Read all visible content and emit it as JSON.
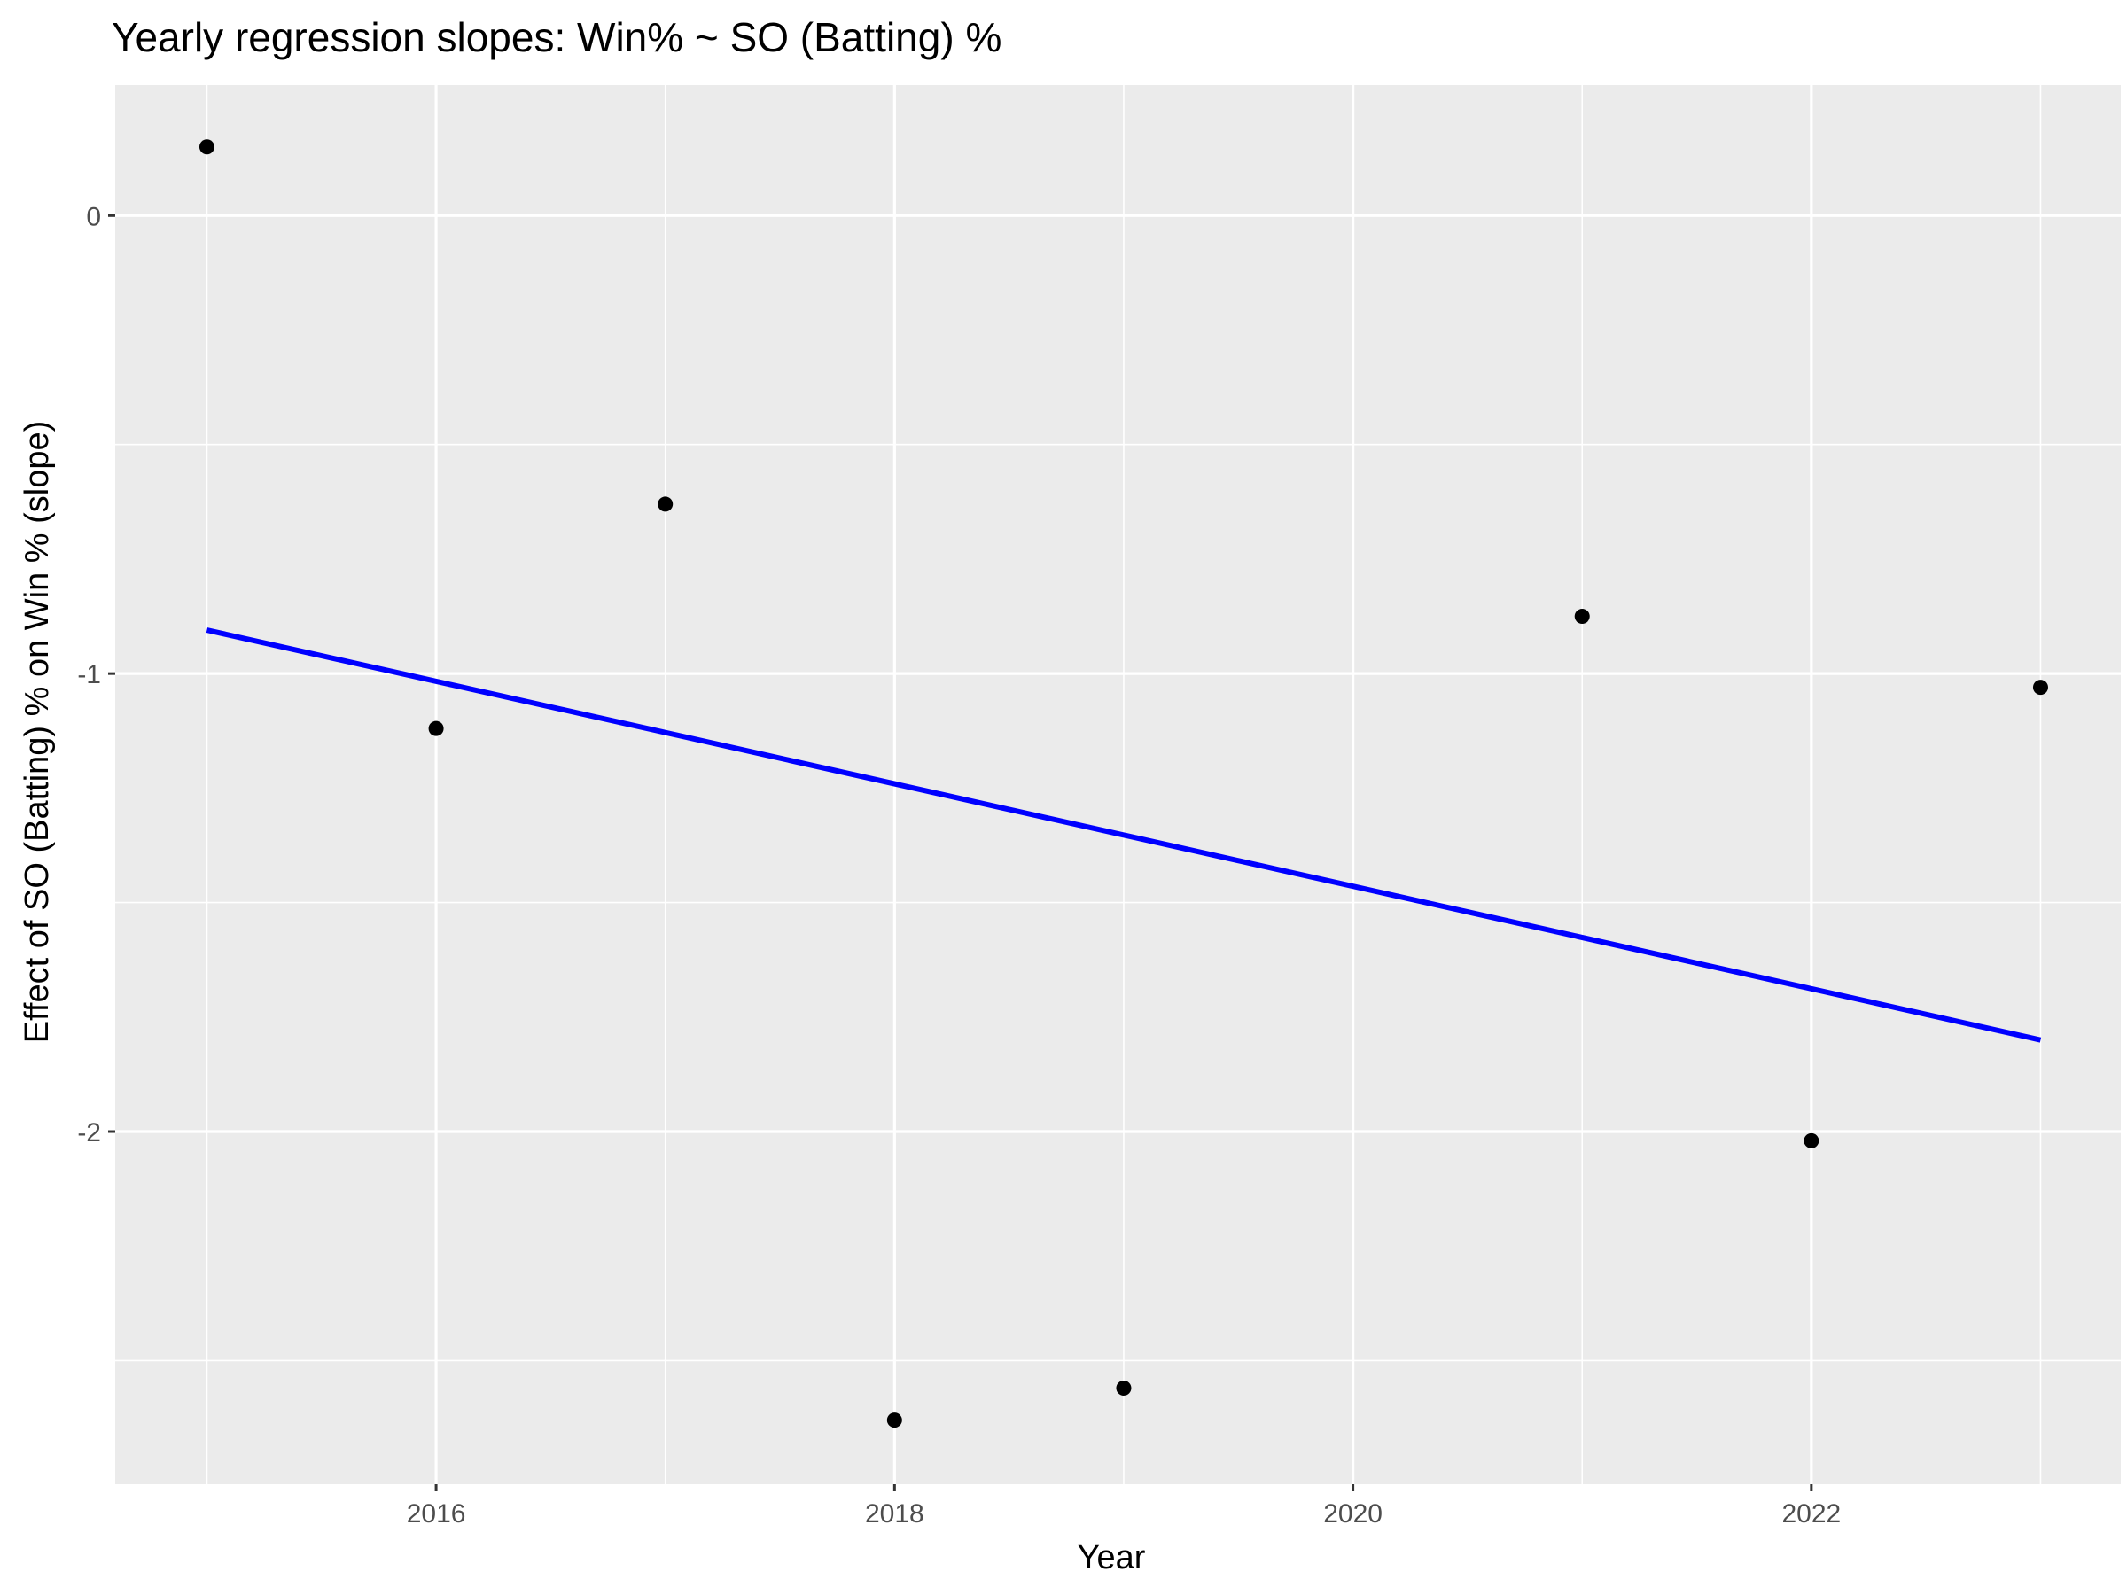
{
  "chart_data": {
    "type": "scatter",
    "title": "Yearly regression slopes: Win% ~ SO (Batting) %",
    "xlabel": "Year",
    "ylabel": "Effect of SO (Batting) % on Win % (slope)",
    "xlim": [
      2014.6,
      2023.35
    ],
    "ylim": [
      -2.77,
      0.285
    ],
    "x_ticks": [
      2016,
      2018,
      2020,
      2022
    ],
    "x_minor_ticks": [
      2015,
      2017,
      2019,
      2021,
      2023
    ],
    "y_ticks": [
      0,
      -1,
      -2
    ],
    "y_minor_ticks": [
      -0.5,
      -1.5,
      -2.5
    ],
    "grid": true,
    "legend": "none",
    "point_color": "#000000",
    "panel_background": "#ebebeb",
    "grid_color": "#ffffff",
    "points": [
      {
        "x": 2015,
        "y": 0.15
      },
      {
        "x": 2016,
        "y": -1.12
      },
      {
        "x": 2017,
        "y": -0.63
      },
      {
        "x": 2018,
        "y": -2.63
      },
      {
        "x": 2019,
        "y": -2.56
      },
      {
        "x": 2021,
        "y": -0.875
      },
      {
        "x": 2022,
        "y": -2.02
      },
      {
        "x": 2023,
        "y": -1.03
      }
    ],
    "trend_line": {
      "color": "#0000ff",
      "x": [
        2015,
        2023
      ],
      "y": [
        -0.905,
        -1.8
      ]
    }
  }
}
